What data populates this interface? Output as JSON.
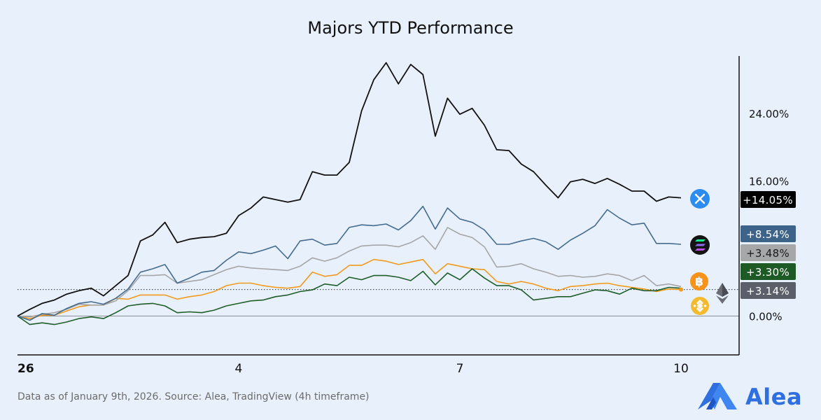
{
  "page": {
    "title": "Majors YTD Performance",
    "source": "Data as of January 9th, 2026. Source: Alea, TradingView (4h timeframe)",
    "brand": "Alea",
    "colors": {
      "background": "#e8f1fb",
      "brand": "#2f6fe0"
    }
  },
  "chart_data": {
    "type": "line",
    "title": "Majors YTD Performance",
    "xlabel": "",
    "ylabel": "",
    "x_ticks": [
      {
        "x": 0,
        "label": "26"
      },
      {
        "x": 0.3333,
        "label": "4"
      },
      {
        "x": 0.6667,
        "label": "7"
      },
      {
        "x": 1,
        "label": "10"
      }
    ],
    "xlim": [
      0,
      1.09
    ],
    "y_ticks": [
      {
        "y": 0,
        "label": "0.00%"
      },
      {
        "y": 16,
        "label": "16.00%"
      },
      {
        "y": 24,
        "label": "24.00%"
      }
    ],
    "ylim": [
      -4.6,
      30.8
    ],
    "grid": false,
    "series": [
      {
        "color": "#111111",
        "icon": "xrp-icon",
        "icon_color": "#2d8cf0",
        "final_label": "+14.05%",
        "values": [
          0,
          0.8,
          1.5,
          1.9,
          2.6,
          3,
          3.3,
          2.4,
          3.6,
          4.8,
          8.9,
          9.6,
          11.1,
          8.7,
          9.1,
          9.3,
          9.4,
          9.8,
          11.9,
          12.8,
          14.1,
          13.8,
          13.5,
          13.8,
          17.1,
          16.7,
          16.7,
          18.2,
          24.3,
          28,
          30,
          27.5,
          29.8,
          28.6,
          21.3,
          25.8,
          23.9,
          24.6,
          22.6,
          19.7,
          19.6,
          18,
          17.1,
          15.5,
          14,
          15.9,
          16.2,
          15.7,
          16.3,
          15.6,
          14.8,
          14.8,
          13.6,
          14.1,
          14
        ]
      },
      {
        "color": "#456b8e",
        "icon": "solana-icon",
        "icon_color": "#141414",
        "final_label": "+8.54%",
        "values": [
          0,
          -0.5,
          0.3,
          0.1,
          0.9,
          1.5,
          1.7,
          1.4,
          2.1,
          3.2,
          5.2,
          5.6,
          6.1,
          3.9,
          4.5,
          5.2,
          5.4,
          6.6,
          7.6,
          7.4,
          7.8,
          8.3,
          6.8,
          8.9,
          9.1,
          8.4,
          8.6,
          10.5,
          10.8,
          10.7,
          10.9,
          10.2,
          11.3,
          13,
          10.3,
          12.8,
          11.5,
          11.1,
          10.2,
          8.5,
          8.5,
          8.9,
          9.2,
          8.8,
          7.9,
          9,
          9.8,
          10.7,
          12.6,
          11.6,
          10.8,
          11,
          8.6,
          8.6,
          8.5
        ]
      },
      {
        "color": "#a5a6a8",
        "icon": "ethereum-icon",
        "icon_color": "#5d5f68",
        "final_label": "+3.48%",
        "values": [
          0,
          -0.1,
          0.2,
          0.4,
          0.8,
          1.4,
          1.3,
          1.3,
          1.8,
          3,
          4.8,
          4.8,
          4.9,
          3.9,
          4.1,
          4.3,
          4.9,
          5.5,
          5.9,
          5.7,
          5.6,
          5.5,
          5.4,
          5.9,
          6.9,
          6.5,
          6.9,
          7.7,
          8.3,
          8.4,
          8.4,
          8.2,
          8.7,
          9.5,
          7.9,
          10.5,
          9.7,
          9.3,
          8.2,
          5.8,
          5.9,
          6.2,
          5.6,
          5.2,
          4.7,
          4.8,
          4.6,
          4.7,
          5,
          4.8,
          4.2,
          4.8,
          3.6,
          3.8,
          3.5
        ]
      },
      {
        "color": "#1e5d2a",
        "icon": "bnb-icon",
        "icon_color": "#f3ba2f",
        "final_label": "+3.30%",
        "values": [
          0,
          -1,
          -0.8,
          -1,
          -0.7,
          -0.3,
          -0.1,
          -0.3,
          0.4,
          1.2,
          1.4,
          1.5,
          1.2,
          0.4,
          0.5,
          0.4,
          0.7,
          1.2,
          1.5,
          1.8,
          1.9,
          2.3,
          2.5,
          2.9,
          3.1,
          3.8,
          3.6,
          4.6,
          4.3,
          4.8,
          4.8,
          4.6,
          4.2,
          5.3,
          3.7,
          5.1,
          4.3,
          5.6,
          4.5,
          3.6,
          3.6,
          3.1,
          1.9,
          2.1,
          2.3,
          2.3,
          2.7,
          3.1,
          3,
          2.6,
          3.3,
          3,
          3,
          3.4,
          3.3
        ]
      },
      {
        "color": "#f39a1b",
        "icon": "bitcoin-icon",
        "icon_color": "#f7931a",
        "final_label": "+3.14%",
        "values": [
          0,
          -0.3,
          0.1,
          0.1,
          0.6,
          1.1,
          1.3,
          1.3,
          2.1,
          2,
          2.5,
          2.5,
          2.5,
          2,
          2.3,
          2.5,
          2.9,
          3.6,
          3.9,
          3.9,
          3.6,
          3.4,
          3.3,
          3.5,
          5.2,
          4.7,
          4.9,
          6,
          6,
          6.7,
          6.5,
          6.1,
          6.4,
          6.7,
          5,
          6.2,
          5.9,
          5.6,
          5.5,
          4.1,
          3.8,
          4.1,
          3.8,
          3.3,
          3,
          3.5,
          3.6,
          3.8,
          3.9,
          3.6,
          3.4,
          3.2,
          2.9,
          3.2,
          3.14
        ]
      }
    ],
    "current_level_marker": 3.14
  }
}
